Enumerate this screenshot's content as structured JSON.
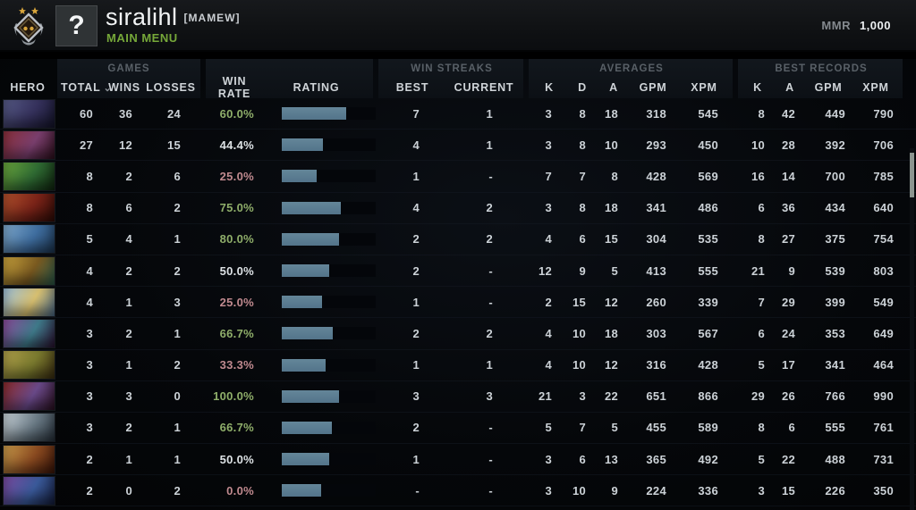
{
  "topbar": {
    "player_name": "siralihl",
    "clan_tag": "[MAMEW]",
    "subtitle": "MAIN MENU",
    "avatar_glyph": "?",
    "mmr_label": "MMR",
    "mmr_value": "1,000",
    "accent_green": "#76a839"
  },
  "table": {
    "groups": {
      "games": "GAMES",
      "win_streaks": "WIN STREAKS",
      "averages": "AVERAGES",
      "best_records": "BEST RECORDS"
    },
    "columns": {
      "hero": "HERO",
      "total": "TOTAL",
      "wins": "WINS",
      "losses": "LOSSES",
      "win_rate": "WIN RATE",
      "rating": "RATING",
      "best": "BEST",
      "current": "CURRENT",
      "k": "K",
      "d": "D",
      "a": "A",
      "gpm": "GPM",
      "xpm": "XPM",
      "rk": "K",
      "ra": "A",
      "rgpm": "GPM",
      "rxpm": "XPM"
    },
    "sort_caret": "⌄",
    "colors": {
      "win_green": "#8fae6a",
      "win_red": "#c08a8f",
      "win_white": "#dde2e5",
      "bar_fill": "#5b7d91",
      "bar_track": "#04060a"
    },
    "rows": [
      {
        "portrait": [
          "#565a86",
          "#35315c",
          "#14142a"
        ],
        "total": "60",
        "wins": "36",
        "losses": "24",
        "win_rate": "60.0%",
        "win_rate_color": "green",
        "rating_pct": 69,
        "streak_best": "7",
        "streak_current": "1",
        "avg_k": "3",
        "avg_d": "8",
        "avg_a": "18",
        "avg_gpm": "318",
        "avg_xpm": "545",
        "best_k": "8",
        "best_a": "42",
        "best_gpm": "449",
        "best_xpm": "790"
      },
      {
        "portrait": [
          "#8a2f3a",
          "#7a3f6e",
          "#2e0f1c"
        ],
        "total": "27",
        "wins": "12",
        "losses": "15",
        "win_rate": "44.4%",
        "win_rate_color": "white",
        "rating_pct": 44,
        "streak_best": "4",
        "streak_current": "1",
        "avg_k": "3",
        "avg_d": "8",
        "avg_a": "10",
        "avg_gpm": "293",
        "avg_xpm": "450",
        "best_k": "10",
        "best_a": "28",
        "best_gpm": "392",
        "best_xpm": "706"
      },
      {
        "portrait": [
          "#69a43c",
          "#2f6b33",
          "#10260f"
        ],
        "total": "8",
        "wins": "2",
        "losses": "6",
        "win_rate": "25.0%",
        "win_rate_color": "red",
        "rating_pct": 37,
        "streak_best": "1",
        "streak_current": "-",
        "avg_k": "7",
        "avg_d": "7",
        "avg_a": "8",
        "avg_gpm": "428",
        "avg_xpm": "569",
        "best_k": "16",
        "best_a": "14",
        "best_gpm": "700",
        "best_xpm": "785"
      },
      {
        "portrait": [
          "#b0502c",
          "#7a2318",
          "#2e0b06"
        ],
        "total": "8",
        "wins": "6",
        "losses": "2",
        "win_rate": "75.0%",
        "win_rate_color": "green",
        "rating_pct": 63,
        "streak_best": "4",
        "streak_current": "2",
        "avg_k": "3",
        "avg_d": "8",
        "avg_a": "18",
        "avg_gpm": "341",
        "avg_xpm": "486",
        "best_k": "6",
        "best_a": "36",
        "best_gpm": "434",
        "best_xpm": "640"
      },
      {
        "portrait": [
          "#7fa9cc",
          "#3f6ea0",
          "#1c3550"
        ],
        "total": "5",
        "wins": "4",
        "losses": "1",
        "win_rate": "80.0%",
        "win_rate_color": "green",
        "rating_pct": 61,
        "streak_best": "2",
        "streak_current": "2",
        "avg_k": "4",
        "avg_d": "6",
        "avg_a": "15",
        "avg_gpm": "304",
        "avg_xpm": "535",
        "best_k": "8",
        "best_a": "27",
        "best_gpm": "375",
        "best_xpm": "754"
      },
      {
        "portrait": [
          "#c8a23c",
          "#7a5a20",
          "#2a5a4a"
        ],
        "total": "4",
        "wins": "2",
        "losses": "2",
        "win_rate": "50.0%",
        "win_rate_color": "white",
        "rating_pct": 50,
        "streak_best": "2",
        "streak_current": "-",
        "avg_k": "12",
        "avg_d": "9",
        "avg_a": "5",
        "avg_gpm": "413",
        "avg_xpm": "555",
        "best_k": "21",
        "best_a": "9",
        "best_gpm": "539",
        "best_xpm": "803"
      },
      {
        "portrait": [
          "#9cc0dc",
          "#d8c070",
          "#4a6a8a"
        ],
        "total": "4",
        "wins": "1",
        "losses": "3",
        "win_rate": "25.0%",
        "win_rate_color": "red",
        "rating_pct": 43,
        "streak_best": "1",
        "streak_current": "-",
        "avg_k": "2",
        "avg_d": "15",
        "avg_a": "12",
        "avg_gpm": "260",
        "avg_xpm": "339",
        "best_k": "7",
        "best_a": "29",
        "best_gpm": "399",
        "best_xpm": "549"
      },
      {
        "portrait": [
          "#8a4a9a",
          "#3f7a8a",
          "#2a1030"
        ],
        "total": "3",
        "wins": "2",
        "losses": "1",
        "win_rate": "66.7%",
        "win_rate_color": "green",
        "rating_pct": 54,
        "streak_best": "2",
        "streak_current": "2",
        "avg_k": "4",
        "avg_d": "10",
        "avg_a": "18",
        "avg_gpm": "303",
        "avg_xpm": "567",
        "best_k": "6",
        "best_a": "24",
        "best_gpm": "353",
        "best_xpm": "649"
      },
      {
        "portrait": [
          "#b0a04a",
          "#7a7a2e",
          "#3a2c10"
        ],
        "total": "3",
        "wins": "1",
        "losses": "2",
        "win_rate": "33.3%",
        "win_rate_color": "red",
        "rating_pct": 47,
        "streak_best": "1",
        "streak_current": "1",
        "avg_k": "4",
        "avg_d": "10",
        "avg_a": "12",
        "avg_gpm": "316",
        "avg_xpm": "428",
        "best_k": "5",
        "best_a": "17",
        "best_gpm": "341",
        "best_xpm": "464"
      },
      {
        "portrait": [
          "#8a2a2a",
          "#6a4a8a",
          "#2a0f1f"
        ],
        "total": "3",
        "wins": "3",
        "losses": "0",
        "win_rate": "100.0%",
        "win_rate_color": "green",
        "rating_pct": 61,
        "streak_best": "3",
        "streak_current": "3",
        "avg_k": "21",
        "avg_d": "3",
        "avg_a": "22",
        "avg_gpm": "651",
        "avg_xpm": "866",
        "best_k": "29",
        "best_a": "26",
        "best_gpm": "766",
        "best_xpm": "990"
      },
      {
        "portrait": [
          "#c8d2d8",
          "#6a7a85",
          "#26303a"
        ],
        "total": "3",
        "wins": "2",
        "losses": "1",
        "win_rate": "66.7%",
        "win_rate_color": "green",
        "rating_pct": 53,
        "streak_best": "2",
        "streak_current": "-",
        "avg_k": "5",
        "avg_d": "7",
        "avg_a": "5",
        "avg_gpm": "455",
        "avg_xpm": "589",
        "best_k": "8",
        "best_a": "6",
        "best_gpm": "555",
        "best_xpm": "761"
      },
      {
        "portrait": [
          "#c89a4a",
          "#8a4a20",
          "#3a1408"
        ],
        "total": "2",
        "wins": "1",
        "losses": "1",
        "win_rate": "50.0%",
        "win_rate_color": "white",
        "rating_pct": 50,
        "streak_best": "1",
        "streak_current": "-",
        "avg_k": "3",
        "avg_d": "6",
        "avg_a": "13",
        "avg_gpm": "365",
        "avg_xpm": "492",
        "best_k": "5",
        "best_a": "22",
        "best_gpm": "488",
        "best_xpm": "731"
      },
      {
        "portrait": [
          "#7a4aa0",
          "#3a5a9a",
          "#141c3a"
        ],
        "total": "2",
        "wins": "0",
        "losses": "2",
        "win_rate": "0.0%",
        "win_rate_color": "red",
        "rating_pct": 42,
        "streak_best": "-",
        "streak_current": "-",
        "avg_k": "3",
        "avg_d": "10",
        "avg_a": "9",
        "avg_gpm": "224",
        "avg_xpm": "336",
        "best_k": "3",
        "best_a": "15",
        "best_gpm": "226",
        "best_xpm": "350"
      }
    ]
  }
}
